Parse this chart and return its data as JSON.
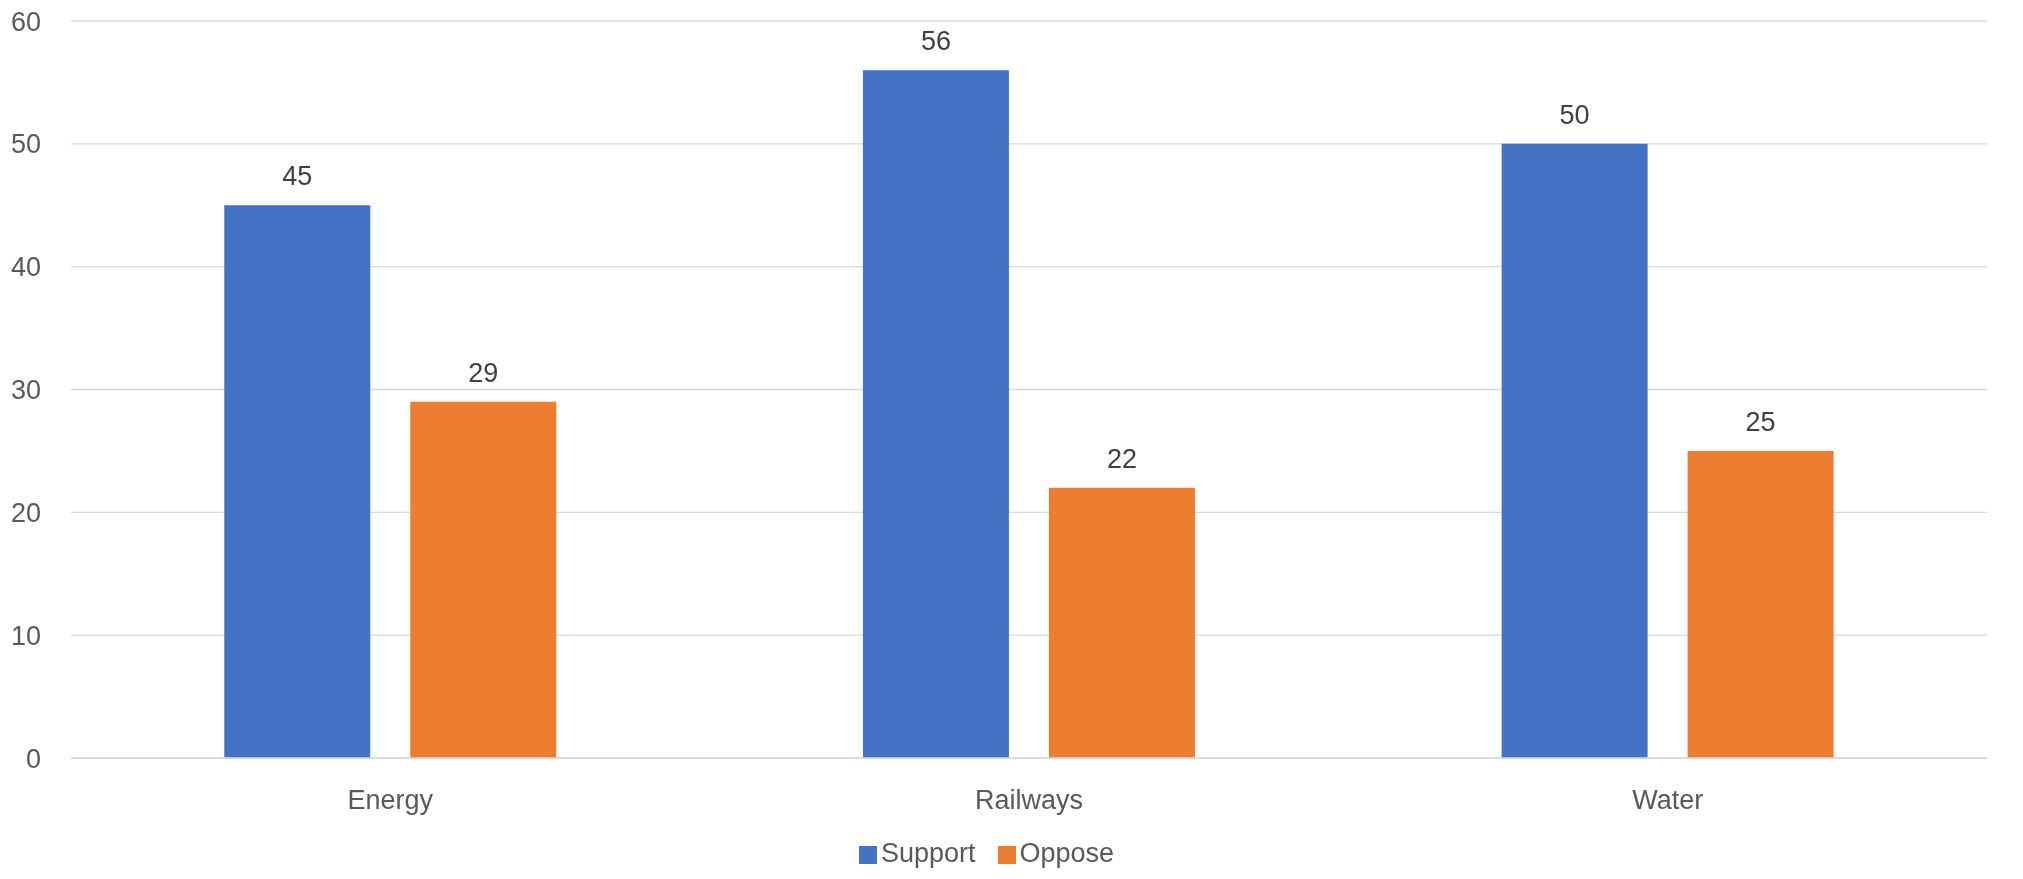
{
  "chart_data": {
    "type": "bar",
    "categories": [
      "Energy",
      "Railways",
      "Water"
    ],
    "series": [
      {
        "name": "Support",
        "color": "#4472c4",
        "values": [
          45,
          56,
          50
        ]
      },
      {
        "name": "Oppose",
        "color": "#ed7d31",
        "values": [
          29,
          22,
          25
        ]
      }
    ],
    "ylim": [
      0,
      60
    ],
    "yticks": [
      0,
      10,
      20,
      30,
      40,
      50,
      60
    ],
    "grid": "y",
    "legend": "bottom",
    "data_labels": true
  }
}
